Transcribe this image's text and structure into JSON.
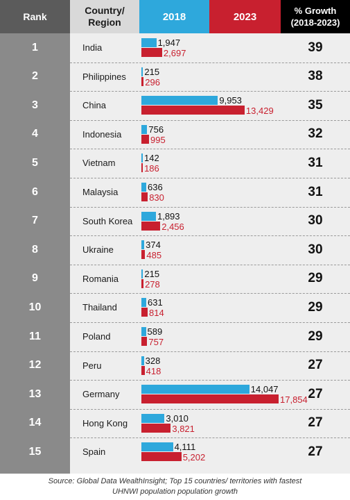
{
  "chart_data": {
    "type": "table",
    "headers": {
      "rank": "Rank",
      "country": "Country/\nRegion",
      "y2018": "2018",
      "y2023": "2023",
      "growth": "% Growth\n(2018-2023)"
    },
    "series": [
      {
        "name": "2018",
        "color": "#2ea8dc"
      },
      {
        "name": "2023",
        "color": "#c8202f"
      }
    ],
    "rows": [
      {
        "rank": "1",
        "country": "India",
        "v2018": 1947,
        "v2018_label": "1,947",
        "v2023": 2697,
        "v2023_label": "2,697",
        "growth": "39"
      },
      {
        "rank": "2",
        "country": "Philippines",
        "v2018": 215,
        "v2018_label": "215",
        "v2023": 296,
        "v2023_label": "296",
        "growth": "38"
      },
      {
        "rank": "3",
        "country": "China",
        "v2018": 9953,
        "v2018_label": "9,953",
        "v2023": 13429,
        "v2023_label": "13,429",
        "growth": "35"
      },
      {
        "rank": "4",
        "country": "Indonesia",
        "v2018": 756,
        "v2018_label": "756",
        "v2023": 995,
        "v2023_label": "995",
        "growth": "32"
      },
      {
        "rank": "5",
        "country": "Vietnam",
        "v2018": 142,
        "v2018_label": "142",
        "v2023": 186,
        "v2023_label": "186",
        "growth": "31"
      },
      {
        "rank": "6",
        "country": "Malaysia",
        "v2018": 636,
        "v2018_label": "636",
        "v2023": 830,
        "v2023_label": "830",
        "growth": "31"
      },
      {
        "rank": "7",
        "country": "South Korea",
        "v2018": 1893,
        "v2018_label": "1,893",
        "v2023": 2456,
        "v2023_label": "2,456",
        "growth": "30"
      },
      {
        "rank": "8",
        "country": "Ukraine",
        "v2018": 374,
        "v2018_label": "374",
        "v2023": 485,
        "v2023_label": "485",
        "growth": "30"
      },
      {
        "rank": "9",
        "country": "Romania",
        "v2018": 215,
        "v2018_label": "215",
        "v2023": 278,
        "v2023_label": "278",
        "growth": "29"
      },
      {
        "rank": "10",
        "country": "Thailand",
        "v2018": 631,
        "v2018_label": "631",
        "v2023": 814,
        "v2023_label": "814",
        "growth": "29"
      },
      {
        "rank": "11",
        "country": "Poland",
        "v2018": 589,
        "v2018_label": "589",
        "v2023": 757,
        "v2023_label": "757",
        "growth": "29"
      },
      {
        "rank": "12",
        "country": "Peru",
        "v2018": 328,
        "v2018_label": "328",
        "v2023": 418,
        "v2023_label": "418",
        "growth": "27"
      },
      {
        "rank": "13",
        "country": "Germany",
        "v2018": 14047,
        "v2018_label": "14,047",
        "v2023": 17854,
        "v2023_label": "17,854",
        "growth": "27"
      },
      {
        "rank": "14",
        "country": "Hong Kong",
        "v2018": 3010,
        "v2018_label": "3,010",
        "v2023": 3821,
        "v2023_label": "3,821",
        "growth": "27"
      },
      {
        "rank": "15",
        "country": "Spain",
        "v2018": 4111,
        "v2018_label": "4,111",
        "v2023": 5202,
        "v2023_label": "5,202",
        "growth": "27"
      }
    ],
    "source": "Source: Global Data WealthInsight; Top 15 countries/ territories with fastest\nUHNWI population population growth"
  }
}
